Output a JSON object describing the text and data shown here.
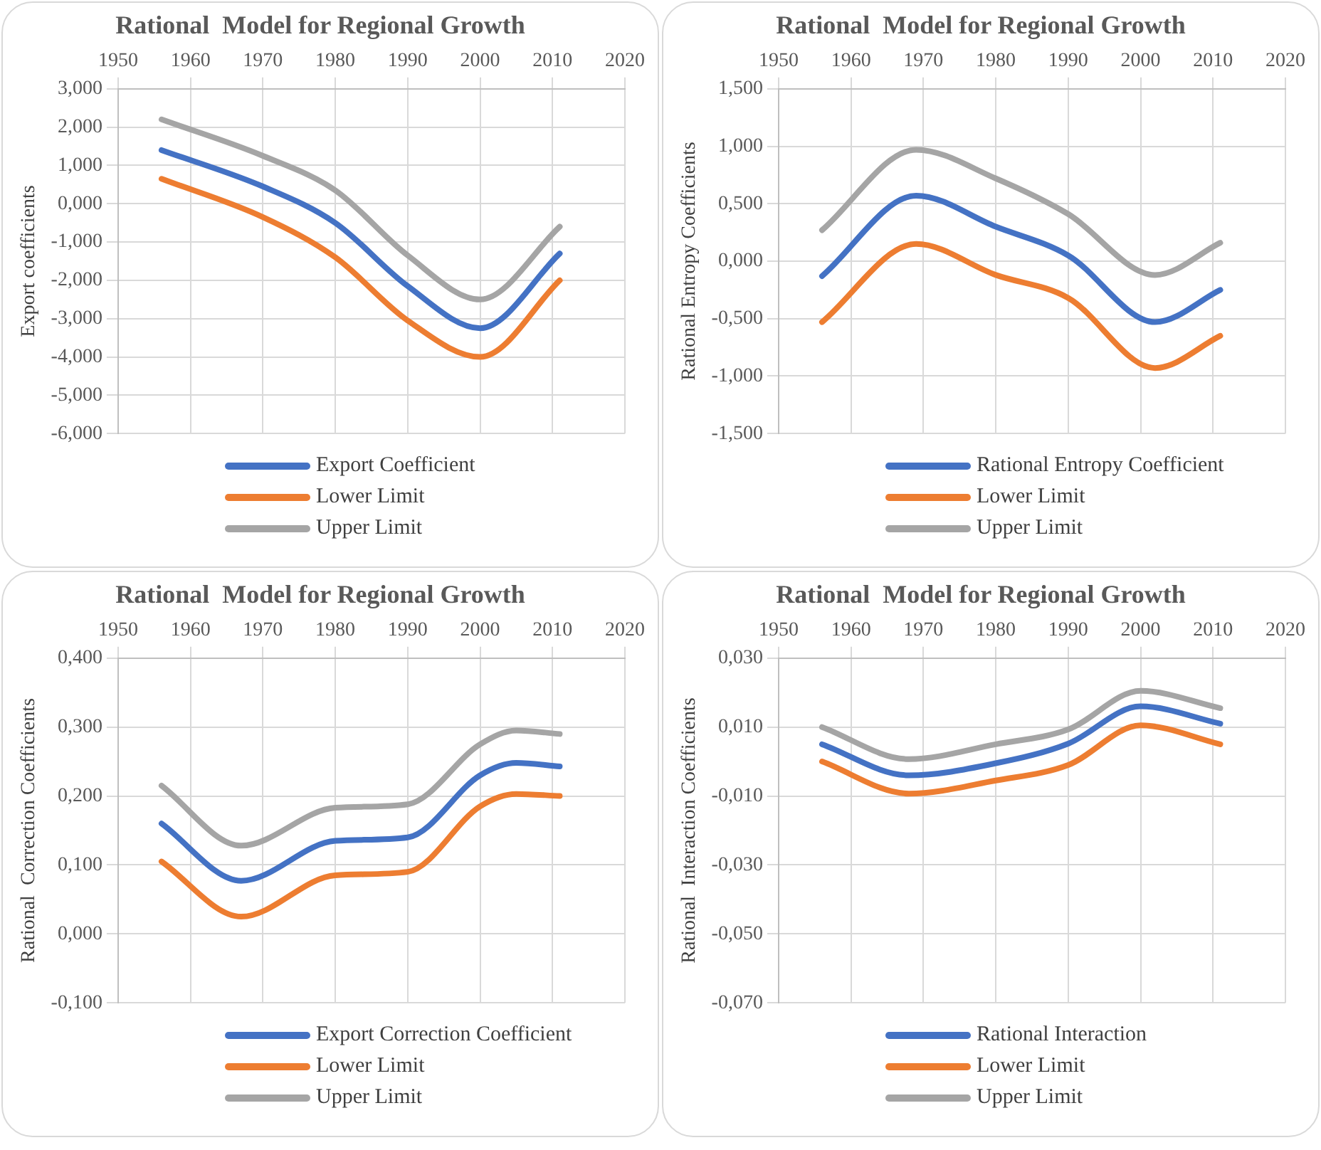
{
  "chart_data": [
    {
      "type": "line",
      "title": "Rational  Model for Regional Growth",
      "ylabel": "Export coefficients",
      "x": [
        1956,
        1970,
        1980,
        1990,
        2000,
        2011
      ],
      "xlim": [
        1950,
        2020
      ],
      "xticks": [
        1950,
        1960,
        1970,
        1980,
        1990,
        2000,
        2010,
        2020
      ],
      "ylim": [
        -6,
        3
      ],
      "yticks": [
        {
          "value": -6,
          "label": "-6,000"
        },
        {
          "value": -5,
          "label": "-5,000"
        },
        {
          "value": -4,
          "label": "-4,000"
        },
        {
          "value": -3,
          "label": "-3,000"
        },
        {
          "value": -2,
          "label": "-2,000"
        },
        {
          "value": -1,
          "label": "-1,000"
        },
        {
          "value": 0,
          "label": "0,000"
        },
        {
          "value": 1,
          "label": "1,000"
        },
        {
          "value": 2,
          "label": "2,000"
        },
        {
          "value": 3,
          "label": "3,000"
        }
      ],
      "grid": true,
      "legend": "bottom",
      "series": [
        {
          "name": "Export Coefficient",
          "color": "#4472c4",
          "values": [
            1.4,
            0.45,
            -0.5,
            -2.15,
            -3.25,
            -1.3
          ]
        },
        {
          "name": "Lower Limit",
          "color": "#ed7d31",
          "values": [
            0.65,
            -0.35,
            -1.4,
            -3.05,
            -4.0,
            -2.0
          ]
        },
        {
          "name": "Upper Limit",
          "color": "#a5a5a5",
          "values": [
            2.2,
            1.25,
            0.35,
            -1.35,
            -2.5,
            -0.6
          ]
        }
      ]
    },
    {
      "type": "line",
      "title": "Rational  Model for Regional Growth",
      "ylabel": "Rational Entropy Coefficients",
      "x": [
        1956,
        1969,
        1980,
        1990,
        2002,
        2011
      ],
      "xlim": [
        1950,
        2020
      ],
      "xticks": [
        1950,
        1960,
        1970,
        1980,
        1990,
        2000,
        2010,
        2020
      ],
      "ylim": [
        -1.5,
        1.5
      ],
      "yticks": [
        {
          "value": -1.5,
          "label": "-1,500"
        },
        {
          "value": -1,
          "label": "-1,000"
        },
        {
          "value": -0.5,
          "label": "-0,500"
        },
        {
          "value": 0,
          "label": "0,000"
        },
        {
          "value": 0.5,
          "label": "0,500"
        },
        {
          "value": 1,
          "label": "1,000"
        },
        {
          "value": 1.5,
          "label": "1,500"
        }
      ],
      "grid": true,
      "legend": "bottom",
      "series": [
        {
          "name": "Rational Entropy Coefficient",
          "color": "#4472c4",
          "values": [
            -0.13,
            0.57,
            0.3,
            0.05,
            -0.53,
            -0.25
          ]
        },
        {
          "name": "Lower Limit",
          "color": "#ed7d31",
          "values": [
            -0.53,
            0.15,
            -0.12,
            -0.32,
            -0.93,
            -0.65
          ]
        },
        {
          "name": "Upper Limit",
          "color": "#a5a5a5",
          "values": [
            0.27,
            0.97,
            0.72,
            0.41,
            -0.12,
            0.16
          ]
        }
      ]
    },
    {
      "type": "line",
      "title": "Rational  Model for Regional Growth",
      "ylabel": "Rational  Correction Coefficients",
      "x": [
        1956,
        1967,
        1980,
        1990,
        2000,
        2005,
        2011
      ],
      "xlim": [
        1950,
        2020
      ],
      "xticks": [
        1950,
        1960,
        1970,
        1980,
        1990,
        2000,
        2010,
        2020
      ],
      "ylim": [
        -0.1,
        0.4
      ],
      "yticks": [
        {
          "value": -0.1,
          "label": "-0,100"
        },
        {
          "value": 0,
          "label": "0,000"
        },
        {
          "value": 0.1,
          "label": "0,100"
        },
        {
          "value": 0.2,
          "label": "0,200"
        },
        {
          "value": 0.3,
          "label": "0,300"
        },
        {
          "value": 0.4,
          "label": "0,400"
        }
      ],
      "grid": true,
      "legend": "bottom",
      "series": [
        {
          "name": "Export Correction Coefficient",
          "color": "#4472c4",
          "values": [
            0.16,
            0.077,
            0.135,
            0.14,
            0.23,
            0.248,
            0.243
          ]
        },
        {
          "name": "Lower Limit",
          "color": "#ed7d31",
          "values": [
            0.105,
            0.025,
            0.085,
            0.09,
            0.185,
            0.203,
            0.2
          ]
        },
        {
          "name": "Upper Limit",
          "color": "#a5a5a5",
          "values": [
            0.215,
            0.128,
            0.183,
            0.188,
            0.275,
            0.295,
            0.29
          ]
        }
      ]
    },
    {
      "type": "line",
      "title": "Rational  Model for Regional Growth",
      "ylabel": "Rational  Interaction Coefficients",
      "x": [
        1956,
        1968,
        1980,
        1990,
        2000,
        2011
      ],
      "xlim": [
        1950,
        2020
      ],
      "xticks": [
        1950,
        1960,
        1970,
        1980,
        1990,
        2000,
        2010,
        2020
      ],
      "ylim": [
        -0.07,
        0.03
      ],
      "yticks": [
        {
          "value": -0.07,
          "label": "-0,070"
        },
        {
          "value": -0.05,
          "label": "-0,050"
        },
        {
          "value": -0.03,
          "label": "-0,030"
        },
        {
          "value": -0.01,
          "label": "-0,010"
        },
        {
          "value": 0.01,
          "label": "0,010"
        },
        {
          "value": 0.03,
          "label": "0,030"
        }
      ],
      "grid": true,
      "legend": "bottom",
      "series": [
        {
          "name": "Rational Interaction",
          "color": "#4472c4",
          "values": [
            0.005,
            -0.004,
            -0.0005,
            0.0052,
            0.016,
            0.011
          ]
        },
        {
          "name": "Lower Limit",
          "color": "#ed7d31",
          "values": [
            0.0,
            -0.0093,
            -0.0055,
            -0.001,
            0.0105,
            0.005
          ]
        },
        {
          "name": "Upper Limit",
          "color": "#a5a5a5",
          "values": [
            0.01,
            0.0007,
            0.005,
            0.0093,
            0.0205,
            0.0155
          ]
        }
      ]
    }
  ]
}
